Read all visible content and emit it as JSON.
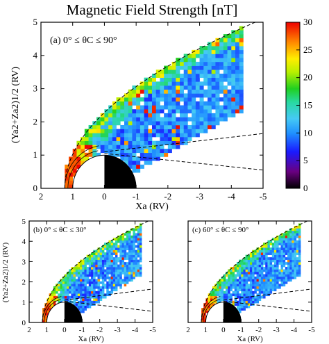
{
  "figure": {
    "title": "Magnetic Field Strength [nT]"
  },
  "chart_data": [
    {
      "type": "heatmap",
      "panel_label": "(a)  0° ≤ θC ≤ 90°",
      "xlabel": "Xa (RV)",
      "ylabel": "(Ya2+Za2)1/2 (RV)",
      "xlim": [
        2,
        -5
      ],
      "ylim": [
        0,
        5
      ],
      "x_ticks": [
        "2",
        "1",
        "0",
        "-1",
        "-2",
        "-3",
        "-4",
        "-5"
      ],
      "y_ticks": [
        "0",
        "1",
        "2",
        "3",
        "4",
        "5"
      ],
      "colorbar": {
        "min": 0,
        "max": 30,
        "ticks": [
          "0",
          "5",
          "10",
          "15",
          "20",
          "25",
          "30"
        ]
      },
      "dominant_values_nT": {
        "bow_shock_edge": 15,
        "magnetosheath_inner": 10,
        "near_planet_nose": 28
      }
    },
    {
      "type": "heatmap",
      "panel_label": "(b)  0° ≤ θC ≤ 30°",
      "xlabel": "Xa (RV)",
      "ylabel": "(Ya2+Za2)1/2 (RV)",
      "xlim": [
        2,
        -5
      ],
      "ylim": [
        0,
        5
      ],
      "x_ticks": [
        "2",
        "1",
        "0",
        "-1",
        "-2",
        "-3",
        "-4",
        "-5"
      ],
      "y_ticks": [
        "0",
        "1",
        "2",
        "3",
        "4",
        "5"
      ]
    },
    {
      "type": "heatmap",
      "panel_label": "(c)  60° ≤ θC ≤ 90°",
      "xlabel": "Xa (RV)",
      "xlim": [
        2,
        -5
      ],
      "ylim": [
        0,
        5
      ],
      "x_ticks": [
        "2",
        "1",
        "0",
        "-1",
        "-2",
        "-3",
        "-4",
        "-5"
      ]
    }
  ]
}
